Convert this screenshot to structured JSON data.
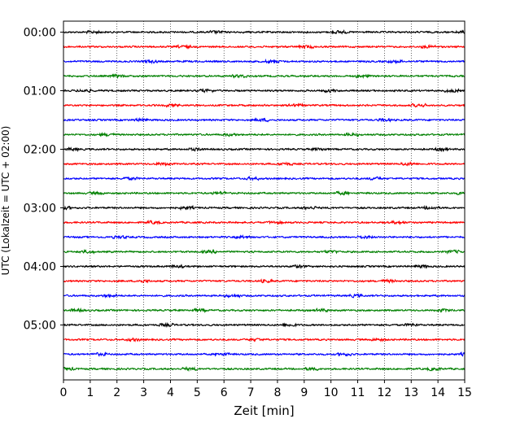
{
  "chart_data": {
    "type": "line",
    "title": "",
    "xlabel": "Zeit  [min]",
    "ylabel": "UTC (Lokalzeit = UTC + 02:00)",
    "xlim": [
      0,
      15
    ],
    "x_ticks": [
      "0",
      "1",
      "2",
      "3",
      "4",
      "5",
      "6",
      "7",
      "8",
      "9",
      "10",
      "11",
      "12",
      "13",
      "14",
      "15"
    ],
    "y_tick_labels": [
      "00:00",
      "01:00",
      "02:00",
      "03:00",
      "04:00",
      "05:00"
    ],
    "grid": "vertical dotted",
    "legend": "none",
    "trace_interval_minutes": 15,
    "trace_count": 24,
    "trace_colors": [
      "#000000",
      "#ff0000",
      "#0000ff",
      "#008000"
    ]
  }
}
